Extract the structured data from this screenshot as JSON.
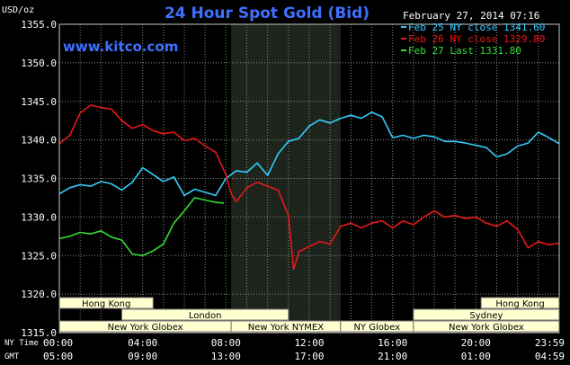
{
  "header": {
    "unit": "USD/oz",
    "title": "24 Hour Spot Gold (Bid)",
    "date": "February 27, 2014 07:16",
    "watermark": "www.kitco.com"
  },
  "chart_data": {
    "type": "line",
    "title": "24 Hour Spot Gold (Bid)",
    "ylabel": "USD/oz",
    "xlabel": "",
    "ylim": [
      1315,
      1355
    ],
    "yticks": [
      "1355.0",
      "1350.0",
      "1345.0",
      "1340.0",
      "1335.0",
      "1330.0",
      "1325.0",
      "1320.0",
      "1315.0"
    ],
    "x_range_hours_ny": [
      0,
      24
    ],
    "x_axis_rows": [
      {
        "label": "NY Time",
        "ticks": [
          "00:00",
          "04:00",
          "08:00",
          "12:00",
          "16:00",
          "20:00",
          "23:59"
        ]
      },
      {
        "label": "GMT",
        "ticks": [
          "05:00",
          "09:00",
          "13:00",
          "17:00",
          "21:00",
          "01:00",
          "04:59"
        ]
      }
    ],
    "grid": true,
    "legend_position": "top-right",
    "shaded_period_ny_hours": [
      8.25,
      13.5
    ],
    "sessions": [
      {
        "name": "Hong Kong",
        "start": 0,
        "end": 4.5,
        "row": 0
      },
      {
        "name": "Hong Kong",
        "start": 20.25,
        "end": 24,
        "row": 0
      },
      {
        "name": "London",
        "start": 3,
        "end": 11,
        "row": 1
      },
      {
        "name": "Sydney",
        "start": 17,
        "end": 24,
        "row": 1
      },
      {
        "name": "New York Globex",
        "start": 0,
        "end": 8.25,
        "row": 2
      },
      {
        "name": "New York NYMEX",
        "start": 8.25,
        "end": 13.5,
        "row": 2
      },
      {
        "name": "NY Globex",
        "start": 13.5,
        "end": 17,
        "row": 2
      },
      {
        "name": "New York Globex",
        "start": 17,
        "end": 24,
        "row": 2
      }
    ],
    "series": [
      {
        "name": "Feb 25 NY close 1341.60",
        "color": "#33ccff",
        "points": [
          [
            0,
            1333.0
          ],
          [
            0.5,
            1333.8
          ],
          [
            1,
            1334.2
          ],
          [
            1.5,
            1334.0
          ],
          [
            2,
            1334.6
          ],
          [
            2.5,
            1334.3
          ],
          [
            3,
            1333.5
          ],
          [
            3.5,
            1334.5
          ],
          [
            4,
            1336.4
          ],
          [
            4.5,
            1335.5
          ],
          [
            5,
            1334.6
          ],
          [
            5.5,
            1335.2
          ],
          [
            6,
            1332.8
          ],
          [
            6.5,
            1333.6
          ],
          [
            7,
            1333.2
          ],
          [
            7.5,
            1332.8
          ],
          [
            8,
            1335.0
          ],
          [
            8.5,
            1336.0
          ],
          [
            9,
            1335.8
          ],
          [
            9.5,
            1337.0
          ],
          [
            10,
            1335.4
          ],
          [
            10.5,
            1338.2
          ],
          [
            11,
            1339.8
          ],
          [
            11.5,
            1340.2
          ],
          [
            12,
            1341.8
          ],
          [
            12.5,
            1342.6
          ],
          [
            13,
            1342.2
          ],
          [
            13.5,
            1342.8
          ],
          [
            14,
            1343.2
          ],
          [
            14.5,
            1342.8
          ],
          [
            15,
            1343.6
          ],
          [
            15.5,
            1343.0
          ],
          [
            16,
            1340.3
          ],
          [
            16.5,
            1340.6
          ],
          [
            17,
            1340.2
          ],
          [
            17.5,
            1340.6
          ],
          [
            18,
            1340.4
          ],
          [
            18.5,
            1339.8
          ],
          [
            19,
            1339.8
          ],
          [
            19.5,
            1339.6
          ],
          [
            20,
            1339.3
          ],
          [
            20.5,
            1339.0
          ],
          [
            21,
            1337.8
          ],
          [
            21.5,
            1338.2
          ],
          [
            22,
            1339.2
          ],
          [
            22.5,
            1339.6
          ],
          [
            23,
            1341.0
          ],
          [
            23.5,
            1340.3
          ],
          [
            24,
            1339.5
          ]
        ]
      },
      {
        "name": "Feb 26 NY close 1329.80",
        "color": "#e81818",
        "points": [
          [
            0,
            1339.5
          ],
          [
            0.5,
            1340.6
          ],
          [
            1,
            1343.5
          ],
          [
            1.5,
            1344.5
          ],
          [
            2,
            1344.2
          ],
          [
            2.5,
            1344.0
          ],
          [
            3,
            1342.5
          ],
          [
            3.5,
            1341.5
          ],
          [
            4,
            1342.0
          ],
          [
            4.5,
            1341.2
          ],
          [
            5,
            1340.8
          ],
          [
            5.5,
            1341.0
          ],
          [
            6,
            1339.9
          ],
          [
            6.5,
            1340.2
          ],
          [
            7,
            1339.2
          ],
          [
            7.5,
            1338.4
          ],
          [
            8,
            1335.5
          ],
          [
            8.25,
            1333.0
          ],
          [
            8.5,
            1332.0
          ],
          [
            9,
            1333.8
          ],
          [
            9.5,
            1334.5
          ],
          [
            10,
            1334.0
          ],
          [
            10.5,
            1333.5
          ],
          [
            11,
            1330.2
          ],
          [
            11.25,
            1323.2
          ],
          [
            11.5,
            1325.5
          ],
          [
            12,
            1326.2
          ],
          [
            12.5,
            1326.8
          ],
          [
            13,
            1326.5
          ],
          [
            13.5,
            1328.8
          ],
          [
            14,
            1329.2
          ],
          [
            14.5,
            1328.6
          ],
          [
            15,
            1329.2
          ],
          [
            15.5,
            1329.5
          ],
          [
            16,
            1328.6
          ],
          [
            16.5,
            1329.5
          ],
          [
            17,
            1329.0
          ],
          [
            17.5,
            1330.0
          ],
          [
            18,
            1330.8
          ],
          [
            18.5,
            1330.0
          ],
          [
            19,
            1330.2
          ],
          [
            19.5,
            1329.8
          ],
          [
            20,
            1330.0
          ],
          [
            20.5,
            1329.2
          ],
          [
            21,
            1328.8
          ],
          [
            21.5,
            1329.5
          ],
          [
            22,
            1328.4
          ],
          [
            22.5,
            1326.0
          ],
          [
            23,
            1326.8
          ],
          [
            23.5,
            1326.4
          ],
          [
            24,
            1326.6
          ]
        ]
      },
      {
        "name": "Feb 27 Last 1331.80",
        "color": "#33dd33",
        "points": [
          [
            0,
            1327.2
          ],
          [
            0.5,
            1327.5
          ],
          [
            1,
            1328.0
          ],
          [
            1.5,
            1327.8
          ],
          [
            2,
            1328.2
          ],
          [
            2.5,
            1327.4
          ],
          [
            3,
            1327.0
          ],
          [
            3.5,
            1325.2
          ],
          [
            4,
            1325.0
          ],
          [
            4.5,
            1325.6
          ],
          [
            5,
            1326.5
          ],
          [
            5.5,
            1329.2
          ],
          [
            6,
            1330.8
          ],
          [
            6.5,
            1332.5
          ],
          [
            7,
            1332.2
          ],
          [
            7.5,
            1331.9
          ],
          [
            7.9,
            1331.8
          ]
        ]
      }
    ]
  }
}
